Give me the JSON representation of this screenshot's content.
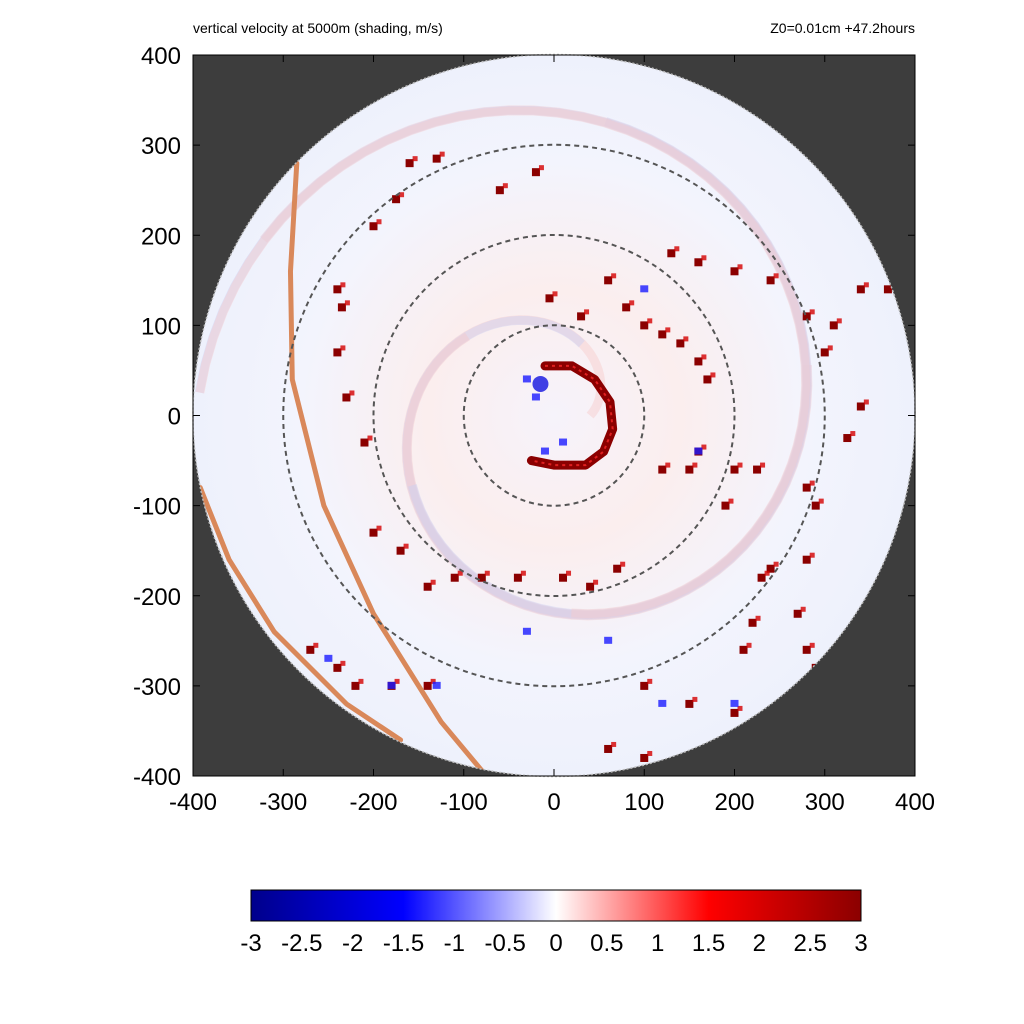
{
  "title_left": "vertical velocity at 5000m (shading, m/s)",
  "title_right": "Z0=0.01cm  +47.2hours",
  "chart_data": {
    "type": "heatmap",
    "title": "vertical velocity at 5000m (shading, m/s)",
    "subtitle": "Z0=0.01cm  +47.2hours",
    "xlim": [
      -400,
      400
    ],
    "ylim": [
      -400,
      400
    ],
    "x_ticks": [
      -400,
      -300,
      -200,
      -100,
      0,
      100,
      200,
      300,
      400
    ],
    "y_ticks": [
      400,
      300,
      200,
      100,
      0,
      -100,
      -200,
      -300,
      -400
    ],
    "domain_radius": 400,
    "range_rings": [
      100,
      200,
      300
    ],
    "colorbar": {
      "min": -3,
      "max": 3,
      "ticks": [
        "-3",
        "-2.5",
        "-2",
        "-1.5",
        "-1",
        "-0.5",
        "0",
        "0.5",
        "1",
        "1.5",
        "2",
        "2.5",
        "3"
      ],
      "colors": [
        "#00008b",
        "#0000ff",
        "#ffffff",
        "#ff0000",
        "#8b0000"
      ]
    },
    "background_color": "#3d3d3d",
    "eyewall_color": "#8b0000",
    "track_color": "#d9885a",
    "eyewall": [
      [
        -10,
        55
      ],
      [
        20,
        55
      ],
      [
        45,
        40
      ],
      [
        62,
        15
      ],
      [
        65,
        -15
      ],
      [
        55,
        -40
      ],
      [
        35,
        -55
      ],
      [
        0,
        -55
      ],
      [
        -25,
        -50
      ]
    ],
    "tracks": [
      [
        [
          -285,
          280
        ],
        [
          -292,
          160
        ],
        [
          -290,
          40
        ],
        [
          -255,
          -100
        ],
        [
          -200,
          -220
        ],
        [
          -125,
          -340
        ],
        [
          -75,
          -400
        ]
      ],
      [
        [
          -392,
          -80
        ],
        [
          -360,
          -160
        ],
        [
          -310,
          -240
        ],
        [
          -230,
          -320
        ],
        [
          -170,
          -360
        ]
      ]
    ],
    "updraft_cells": [
      [
        -200,
        210
      ],
      [
        -175,
        240
      ],
      [
        -160,
        280
      ],
      [
        -130,
        285
      ],
      [
        -20,
        270
      ],
      [
        -60,
        250
      ],
      [
        -240,
        140
      ],
      [
        -235,
        120
      ],
      [
        -240,
        70
      ],
      [
        -230,
        20
      ],
      [
        -210,
        -30
      ],
      [
        -200,
        -130
      ],
      [
        -170,
        -150
      ],
      [
        -140,
        -190
      ],
      [
        -110,
        -180
      ],
      [
        -80,
        -180
      ],
      [
        -40,
        -180
      ],
      [
        10,
        -180
      ],
      [
        40,
        -190
      ],
      [
        70,
        -170
      ],
      [
        -5,
        130
      ],
      [
        30,
        110
      ],
      [
        60,
        150
      ],
      [
        80,
        120
      ],
      [
        100,
        100
      ],
      [
        120,
        90
      ],
      [
        140,
        80
      ],
      [
        160,
        60
      ],
      [
        170,
        40
      ],
      [
        160,
        -40
      ],
      [
        150,
        -60
      ],
      [
        120,
        -60
      ],
      [
        190,
        -100
      ],
      [
        200,
        -60
      ],
      [
        225,
        -60
      ],
      [
        280,
        -80
      ],
      [
        290,
        -100
      ],
      [
        280,
        -160
      ],
      [
        240,
        -170
      ],
      [
        230,
        -180
      ],
      [
        220,
        -230
      ],
      [
        210,
        -260
      ],
      [
        270,
        -220
      ],
      [
        280,
        -260
      ],
      [
        290,
        -280
      ],
      [
        200,
        -330
      ],
      [
        150,
        -320
      ],
      [
        100,
        -300
      ],
      [
        130,
        180
      ],
      [
        160,
        170
      ],
      [
        200,
        160
      ],
      [
        240,
        150
      ],
      [
        280,
        110
      ],
      [
        310,
        100
      ],
      [
        340,
        10
      ],
      [
        325,
        -25
      ],
      [
        300,
        70
      ],
      [
        340,
        140
      ],
      [
        370,
        140
      ],
      [
        100,
        -380
      ],
      [
        60,
        -370
      ],
      [
        -270,
        -260
      ],
      [
        -240,
        -280
      ],
      [
        -220,
        -300
      ],
      [
        -180,
        -300
      ],
      [
        -140,
        -300
      ]
    ],
    "downdraft_cells": [
      [
        -30,
        40
      ],
      [
        -10,
        -40
      ],
      [
        10,
        -30
      ],
      [
        -20,
        20
      ],
      [
        160,
        -40
      ],
      [
        100,
        140
      ],
      [
        -180,
        -300
      ],
      [
        -250,
        -270
      ],
      [
        -130,
        -300
      ],
      [
        60,
        -250
      ],
      [
        -30,
        -240
      ],
      [
        200,
        -320
      ],
      [
        120,
        -320
      ]
    ]
  }
}
